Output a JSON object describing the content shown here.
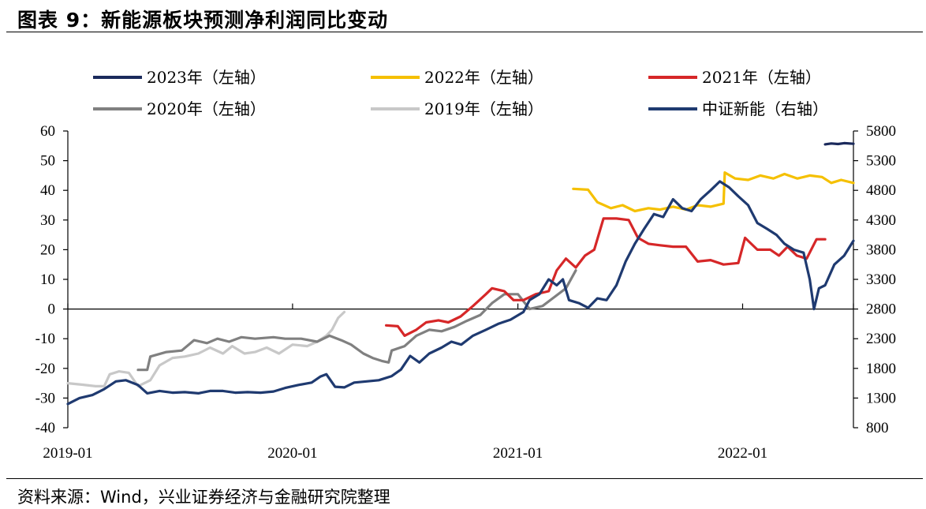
{
  "header": {
    "title": "图表 9：新能源板块预测净利润同比变动"
  },
  "footer": {
    "source": "资料来源：Wind，兴业证券经济与金融研究院整理"
  },
  "chart_data": {
    "type": "line",
    "left_axis": {
      "ylim": [
        -40,
        60
      ],
      "ticks": [
        "60",
        "50",
        "40",
        "30",
        "20",
        "10",
        "0",
        "-10",
        "-20",
        "-30",
        "-40"
      ]
    },
    "right_axis": {
      "ylim": [
        800,
        5800
      ],
      "ticks": [
        "5800",
        "5300",
        "4800",
        "4300",
        "3800",
        "3300",
        "2800",
        "2300",
        "1800",
        "1300",
        "800"
      ]
    },
    "x_ticks": [
      "2019-01",
      "2020-01",
      "2021-01",
      "2022-01"
    ],
    "xlim": [
      "2019-01-01",
      "2022-06-30"
    ],
    "legend_placement": "top",
    "series": [
      {
        "name": "2023年（左轴）",
        "axis": "left",
        "color": "#1b2a5c",
        "points": [
          [
            "2022-05-15",
            55.5
          ],
          [
            "2022-05-25",
            55.8
          ],
          [
            "2022-06-05",
            55.6
          ],
          [
            "2022-06-15",
            55.9
          ],
          [
            "2022-06-30",
            55.7
          ]
        ]
      },
      {
        "name": "2022年（左轴）",
        "axis": "left",
        "color": "#f5c000",
        "points": [
          [
            "2021-04-01",
            40.5
          ],
          [
            "2021-04-25",
            40.2
          ],
          [
            "2021-05-10",
            36
          ],
          [
            "2021-06-01",
            34
          ],
          [
            "2021-06-20",
            35
          ],
          [
            "2021-07-10",
            33
          ],
          [
            "2021-08-01",
            34
          ],
          [
            "2021-08-20",
            33.5
          ],
          [
            "2021-09-10",
            34.5
          ],
          [
            "2021-10-01",
            33.5
          ],
          [
            "2021-10-20",
            35
          ],
          [
            "2021-11-10",
            34.5
          ],
          [
            "2021-12-01",
            35.5
          ],
          [
            "2021-12-03",
            46
          ],
          [
            "2021-12-20",
            44
          ],
          [
            "2022-01-10",
            43.5
          ],
          [
            "2022-01-30",
            45
          ],
          [
            "2022-02-20",
            44
          ],
          [
            "2022-03-10",
            45.5
          ],
          [
            "2022-03-31",
            44
          ],
          [
            "2022-04-20",
            45
          ],
          [
            "2022-05-10",
            44.5
          ],
          [
            "2022-05-25",
            42.5
          ],
          [
            "2022-06-10",
            43.5
          ],
          [
            "2022-06-30",
            42.5
          ]
        ]
      },
      {
        "name": "2021年（左轴）",
        "axis": "left",
        "color": "#d62728",
        "points": [
          [
            "2020-06-01",
            -5.5
          ],
          [
            "2020-06-20",
            -5.8
          ],
          [
            "2020-07-01",
            -9
          ],
          [
            "2020-07-20",
            -7
          ],
          [
            "2020-08-05",
            -4.5
          ],
          [
            "2020-08-25",
            -3.8
          ],
          [
            "2020-09-10",
            -4.5
          ],
          [
            "2020-09-30",
            -2.5
          ],
          [
            "2020-10-20",
            1
          ],
          [
            "2020-11-10",
            5
          ],
          [
            "2020-11-20",
            7
          ],
          [
            "2020-12-10",
            6
          ],
          [
            "2020-12-25",
            3
          ],
          [
            "2021-01-10",
            3
          ],
          [
            "2021-01-30",
            5
          ],
          [
            "2021-02-20",
            6
          ],
          [
            "2021-03-05",
            13
          ],
          [
            "2021-03-20",
            17
          ],
          [
            "2021-04-05",
            14
          ],
          [
            "2021-04-20",
            18
          ],
          [
            "2021-05-05",
            20
          ],
          [
            "2021-05-20",
            30.5
          ],
          [
            "2021-06-10",
            30.5
          ],
          [
            "2021-06-30",
            30
          ],
          [
            "2021-07-15",
            24
          ],
          [
            "2021-08-01",
            22
          ],
          [
            "2021-08-20",
            21.5
          ],
          [
            "2021-09-10",
            21
          ],
          [
            "2021-10-01",
            21
          ],
          [
            "2021-10-20",
            16
          ],
          [
            "2021-11-10",
            16.5
          ],
          [
            "2021-12-01",
            15
          ],
          [
            "2021-12-25",
            15.5
          ],
          [
            "2022-01-05",
            24
          ],
          [
            "2022-01-25",
            20
          ],
          [
            "2022-02-15",
            20
          ],
          [
            "2022-03-01",
            18
          ],
          [
            "2022-03-15",
            21
          ],
          [
            "2022-03-30",
            18
          ],
          [
            "2022-04-15",
            17
          ],
          [
            "2022-05-01",
            23.5
          ],
          [
            "2022-05-15",
            23.5
          ]
        ]
      },
      {
        "name": "2020年（左轴）",
        "axis": "left",
        "color": "#808080",
        "points": [
          [
            "2019-04-25",
            -20.5
          ],
          [
            "2019-05-10",
            -20.5
          ],
          [
            "2019-05-15",
            -16
          ],
          [
            "2019-06-10",
            -14.5
          ],
          [
            "2019-07-05",
            -14
          ],
          [
            "2019-07-25",
            -10.5
          ],
          [
            "2019-08-15",
            -11.5
          ],
          [
            "2019-09-01",
            -10
          ],
          [
            "2019-09-20",
            -11
          ],
          [
            "2019-10-10",
            -9.5
          ],
          [
            "2019-11-01",
            -10
          ],
          [
            "2019-12-01",
            -9.5
          ],
          [
            "2019-12-20",
            -10
          ],
          [
            "2020-01-15",
            -10
          ],
          [
            "2020-02-10",
            -11
          ],
          [
            "2020-03-01",
            -9
          ],
          [
            "2020-03-20",
            -10.5
          ],
          [
            "2020-04-05",
            -12
          ],
          [
            "2020-04-25",
            -15
          ],
          [
            "2020-05-10",
            -16.5
          ],
          [
            "2020-05-25",
            -17.5
          ],
          [
            "2020-06-05",
            -18
          ],
          [
            "2020-06-10",
            -14
          ],
          [
            "2020-07-01",
            -12.5
          ],
          [
            "2020-07-20",
            -9
          ],
          [
            "2020-08-10",
            -7
          ],
          [
            "2020-08-30",
            -7.5
          ],
          [
            "2020-09-20",
            -6
          ],
          [
            "2020-10-10",
            -4
          ],
          [
            "2020-11-01",
            -2
          ],
          [
            "2020-11-20",
            2
          ],
          [
            "2020-12-10",
            5
          ],
          [
            "2021-01-01",
            5
          ],
          [
            "2021-01-20",
            0
          ],
          [
            "2021-02-10",
            1
          ],
          [
            "2021-03-01",
            4
          ],
          [
            "2021-03-20",
            7
          ],
          [
            "2021-04-05",
            13
          ]
        ]
      },
      {
        "name": "2019年（左轴）",
        "axis": "left",
        "color": "#c8c8c8",
        "points": [
          [
            "2019-01-01",
            -25
          ],
          [
            "2019-01-25",
            -25.5
          ],
          [
            "2019-02-15",
            -26
          ],
          [
            "2019-03-01",
            -26
          ],
          [
            "2019-03-10",
            -22
          ],
          [
            "2019-03-25",
            -21
          ],
          [
            "2019-04-10",
            -21.5
          ],
          [
            "2019-04-25",
            -26
          ],
          [
            "2019-05-15",
            -24
          ],
          [
            "2019-05-30",
            -19
          ],
          [
            "2019-06-20",
            -16.5
          ],
          [
            "2019-07-10",
            -16
          ],
          [
            "2019-08-01",
            -15
          ],
          [
            "2019-08-20",
            -13
          ],
          [
            "2019-09-10",
            -15
          ],
          [
            "2019-09-25",
            -12.5
          ],
          [
            "2019-10-15",
            -15
          ],
          [
            "2019-11-01",
            -14.5
          ],
          [
            "2019-11-20",
            -13
          ],
          [
            "2019-12-10",
            -15
          ],
          [
            "2020-01-01",
            -12
          ],
          [
            "2020-01-25",
            -12.5
          ],
          [
            "2020-02-10",
            -11
          ],
          [
            "2020-02-25",
            -9
          ],
          [
            "2020-03-05",
            -7
          ],
          [
            "2020-03-15",
            -3
          ],
          [
            "2020-03-25",
            -1
          ]
        ]
      },
      {
        "name": "中证新能（右轴）",
        "axis": "right",
        "color": "#1f3a70",
        "points": [
          [
            "2019-01-01",
            1200
          ],
          [
            "2019-01-20",
            1300
          ],
          [
            "2019-02-10",
            1350
          ],
          [
            "2019-03-01",
            1450
          ],
          [
            "2019-03-20",
            1580
          ],
          [
            "2019-04-05",
            1600
          ],
          [
            "2019-04-25",
            1520
          ],
          [
            "2019-05-10",
            1380
          ],
          [
            "2019-05-30",
            1420
          ],
          [
            "2019-06-20",
            1390
          ],
          [
            "2019-07-10",
            1400
          ],
          [
            "2019-08-01",
            1380
          ],
          [
            "2019-08-20",
            1420
          ],
          [
            "2019-09-10",
            1420
          ],
          [
            "2019-09-30",
            1390
          ],
          [
            "2019-10-20",
            1400
          ],
          [
            "2019-11-10",
            1390
          ],
          [
            "2019-12-01",
            1410
          ],
          [
            "2019-12-20",
            1470
          ],
          [
            "2020-01-10",
            1520
          ],
          [
            "2020-02-01",
            1560
          ],
          [
            "2020-02-15",
            1660
          ],
          [
            "2020-02-25",
            1700
          ],
          [
            "2020-03-10",
            1490
          ],
          [
            "2020-03-25",
            1480
          ],
          [
            "2020-04-10",
            1560
          ],
          [
            "2020-04-30",
            1580
          ],
          [
            "2020-05-20",
            1600
          ],
          [
            "2020-06-10",
            1670
          ],
          [
            "2020-06-25",
            1780
          ],
          [
            "2020-07-10",
            2010
          ],
          [
            "2020-07-25",
            1900
          ],
          [
            "2020-08-10",
            2050
          ],
          [
            "2020-08-30",
            2150
          ],
          [
            "2020-09-15",
            2250
          ],
          [
            "2020-10-01",
            2200
          ],
          [
            "2020-10-20",
            2350
          ],
          [
            "2020-11-10",
            2450
          ],
          [
            "2020-11-30",
            2550
          ],
          [
            "2020-12-20",
            2620
          ],
          [
            "2021-01-10",
            2750
          ],
          [
            "2021-01-20",
            2950
          ],
          [
            "2021-02-05",
            3050
          ],
          [
            "2021-02-20",
            3300
          ],
          [
            "2021-03-05",
            3200
          ],
          [
            "2021-03-15",
            3300
          ],
          [
            "2021-03-25",
            2950
          ],
          [
            "2021-04-10",
            2900
          ],
          [
            "2021-04-25",
            2820
          ],
          [
            "2021-05-10",
            2980
          ],
          [
            "2021-05-25",
            2950
          ],
          [
            "2021-06-10",
            3200
          ],
          [
            "2021-06-25",
            3600
          ],
          [
            "2021-07-10",
            3900
          ],
          [
            "2021-07-25",
            4150
          ],
          [
            "2021-08-10",
            4400
          ],
          [
            "2021-08-25",
            4350
          ],
          [
            "2021-09-10",
            4650
          ],
          [
            "2021-09-25",
            4500
          ],
          [
            "2021-10-10",
            4450
          ],
          [
            "2021-10-25",
            4650
          ],
          [
            "2021-11-10",
            4800
          ],
          [
            "2021-11-25",
            4950
          ],
          [
            "2021-12-10",
            4850
          ],
          [
            "2021-12-25",
            4700
          ],
          [
            "2022-01-10",
            4550
          ],
          [
            "2022-01-25",
            4250
          ],
          [
            "2022-02-10",
            4150
          ],
          [
            "2022-02-25",
            4050
          ],
          [
            "2022-03-10",
            3900
          ],
          [
            "2022-03-25",
            3800
          ],
          [
            "2022-04-10",
            3750
          ],
          [
            "2022-04-20",
            3300
          ],
          [
            "2022-04-27",
            2800
          ],
          [
            "2022-05-05",
            3150
          ],
          [
            "2022-05-15",
            3200
          ],
          [
            "2022-05-30",
            3550
          ],
          [
            "2022-06-15",
            3700
          ],
          [
            "2022-06-30",
            3950
          ]
        ]
      }
    ]
  }
}
